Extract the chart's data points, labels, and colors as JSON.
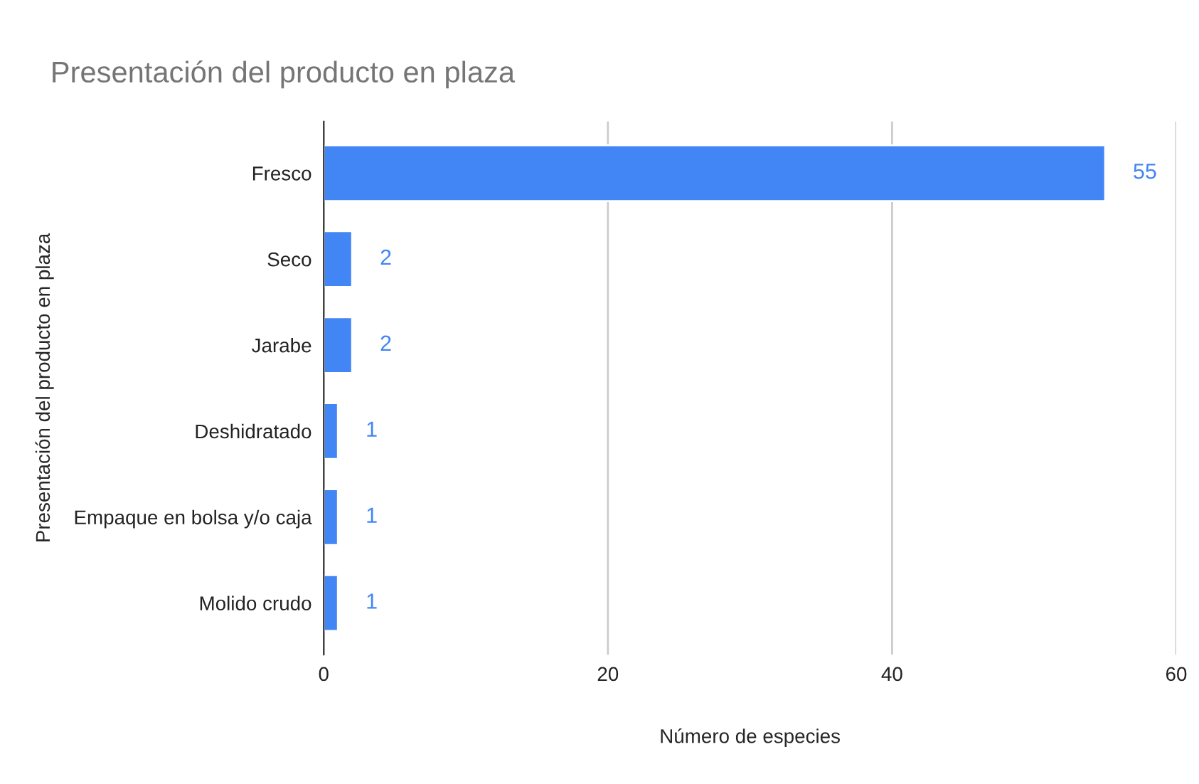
{
  "chart_data": {
    "type": "bar",
    "orientation": "horizontal",
    "title": "Presentación del producto en plaza",
    "xlabel": "Número de especies",
    "ylabel": "Presentación del producto en plaza",
    "categories": [
      "Fresco",
      "Seco",
      "Jarabe",
      "Deshidratado",
      "Empaque en bolsa y/o caja",
      "Molido crudo"
    ],
    "values": [
      55,
      2,
      2,
      1,
      1,
      1
    ],
    "color": "#4285f4",
    "data_labels": true,
    "xlim": [
      0,
      60
    ],
    "xticks": [
      0,
      20,
      40,
      60
    ],
    "grid": "x",
    "legend": false
  }
}
